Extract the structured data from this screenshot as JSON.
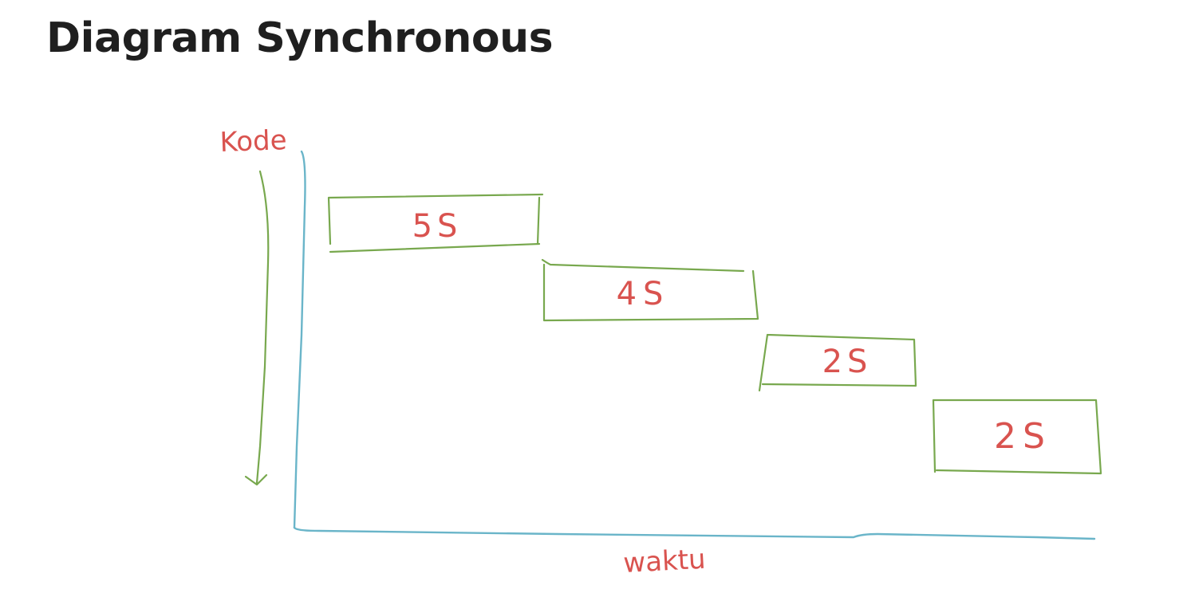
{
  "title": "Diagram Synchronous",
  "diagram": {
    "y_axis_label": "Kode",
    "x_axis_label": "waktu",
    "tasks": [
      {
        "label": "5S"
      },
      {
        "label": "4S"
      },
      {
        "label": "2S"
      },
      {
        "label": "2S"
      }
    ],
    "colors": {
      "axis": "#6ab5c9",
      "box": "#78a84e",
      "text": "#d9534f"
    }
  }
}
